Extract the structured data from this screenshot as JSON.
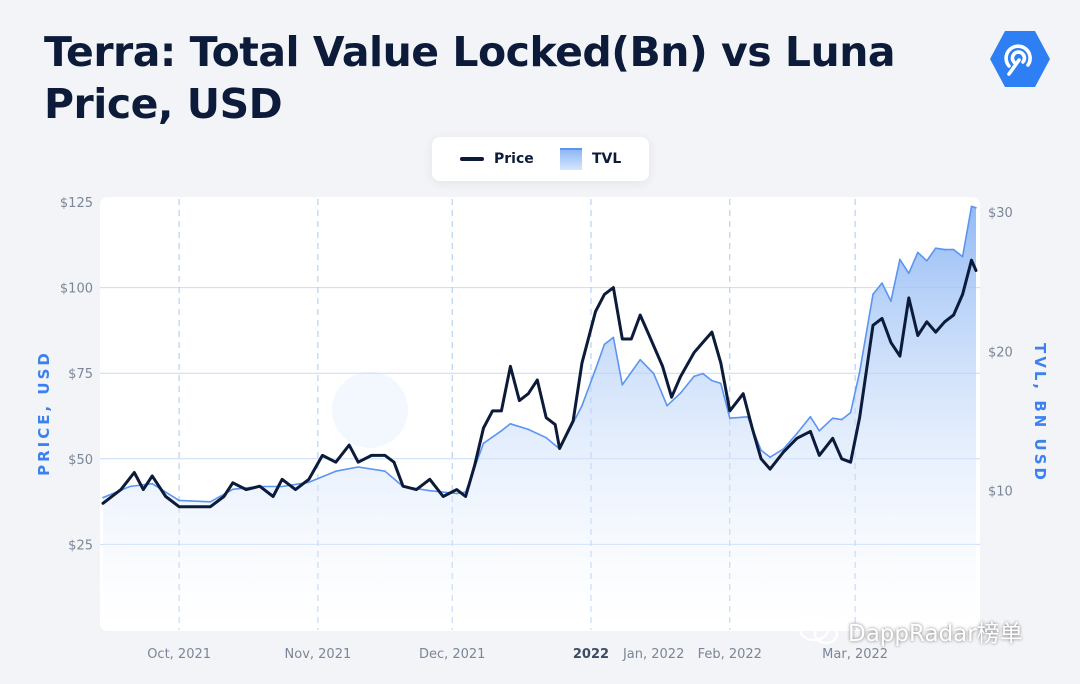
{
  "header": {
    "title": "Terra: Total Value Locked(Bn) vs Luna Price, USD"
  },
  "brand": {
    "logo_icon": "dappradar-logo-icon",
    "accent": "#3b82f0",
    "dark": "#0c1b3a"
  },
  "legend": {
    "items": [
      {
        "label": "Price",
        "color": "#0c1b3a",
        "kind": "line"
      },
      {
        "label": "TVL",
        "color": "#5b95ef",
        "kind": "area"
      }
    ]
  },
  "chart_data": {
    "type": "line",
    "title": "Terra: Total Value Locked(Bn) vs Luna Price, USD",
    "x_ticks": [
      "Oct, 2021",
      "Nov, 2021",
      "Dec, 2021",
      "2022",
      "Jan, 2022",
      "Feb, 2022",
      "Mar, 2022"
    ],
    "x_range": [
      "2021-09-14",
      "2022-03-28"
    ],
    "ylabel_left": "PRICE, USD",
    "ylabel_right": "TVL, BN USD",
    "y_left": {
      "ticks": [
        "$125",
        "$100",
        "$75",
        "$50",
        "$25"
      ],
      "values": [
        125,
        100,
        75,
        50,
        25
      ],
      "range": [
        0,
        125
      ]
    },
    "y_right": {
      "ticks": [
        "$30",
        "$20",
        "$10"
      ],
      "values": [
        30,
        20,
        10
      ],
      "range": [
        0,
        30
      ]
    },
    "grid": "horizontal solid, vertical dashed",
    "legend_position": "top-center",
    "series": [
      {
        "name": "Price",
        "axis": "left",
        "color": "#0c1b3a",
        "points": [
          [
            "2021-09-14",
            37
          ],
          [
            "2021-09-18",
            41
          ],
          [
            "2021-09-21",
            46
          ],
          [
            "2021-09-23",
            41
          ],
          [
            "2021-09-25",
            45
          ],
          [
            "2021-09-28",
            39
          ],
          [
            "2021-10-01",
            36
          ],
          [
            "2021-10-05",
            36
          ],
          [
            "2021-10-08",
            36
          ],
          [
            "2021-10-11",
            39
          ],
          [
            "2021-10-13",
            43
          ],
          [
            "2021-10-16",
            41
          ],
          [
            "2021-10-19",
            42
          ],
          [
            "2021-10-22",
            39
          ],
          [
            "2021-10-24",
            44
          ],
          [
            "2021-10-27",
            41
          ],
          [
            "2021-10-30",
            44
          ],
          [
            "2021-11-02",
            51
          ],
          [
            "2021-11-05",
            49
          ],
          [
            "2021-11-08",
            54
          ],
          [
            "2021-11-10",
            49
          ],
          [
            "2021-11-13",
            51
          ],
          [
            "2021-11-16",
            51
          ],
          [
            "2021-11-18",
            49
          ],
          [
            "2021-11-20",
            42
          ],
          [
            "2021-11-23",
            41
          ],
          [
            "2021-11-26",
            44
          ],
          [
            "2021-11-29",
            39
          ],
          [
            "2021-12-02",
            41
          ],
          [
            "2021-12-04",
            39
          ],
          [
            "2021-12-06",
            48
          ],
          [
            "2021-12-08",
            59
          ],
          [
            "2021-12-10",
            64
          ],
          [
            "2021-12-12",
            64
          ],
          [
            "2021-12-14",
            77
          ],
          [
            "2021-12-16",
            67
          ],
          [
            "2021-12-18",
            69
          ],
          [
            "2021-12-20",
            73
          ],
          [
            "2021-12-22",
            62
          ],
          [
            "2021-12-24",
            60
          ],
          [
            "2021-12-25",
            53
          ],
          [
            "2021-12-28",
            61
          ],
          [
            "2021-12-30",
            78
          ],
          [
            "2022-01-02",
            93
          ],
          [
            "2022-01-04",
            98
          ],
          [
            "2022-01-06",
            100
          ],
          [
            "2022-01-08",
            85
          ],
          [
            "2022-01-10",
            85
          ],
          [
            "2022-01-12",
            92
          ],
          [
            "2022-01-14",
            86
          ],
          [
            "2022-01-17",
            77
          ],
          [
            "2022-01-19",
            68
          ],
          [
            "2022-01-21",
            74
          ],
          [
            "2022-01-24",
            81
          ],
          [
            "2022-01-26",
            84
          ],
          [
            "2022-01-28",
            87
          ],
          [
            "2022-01-30",
            78
          ],
          [
            "2022-02-01",
            64
          ],
          [
            "2022-02-04",
            69
          ],
          [
            "2022-02-06",
            59
          ],
          [
            "2022-02-08",
            50
          ],
          [
            "2022-02-10",
            47
          ],
          [
            "2022-02-13",
            52
          ],
          [
            "2022-02-16",
            56
          ],
          [
            "2022-02-19",
            58
          ],
          [
            "2022-02-21",
            51
          ],
          [
            "2022-02-24",
            56
          ],
          [
            "2022-02-26",
            50
          ],
          [
            "2022-02-28",
            49
          ],
          [
            "2022-03-02",
            62
          ],
          [
            "2022-03-05",
            89
          ],
          [
            "2022-03-07",
            91
          ],
          [
            "2022-03-09",
            84
          ],
          [
            "2022-03-11",
            80
          ],
          [
            "2022-03-13",
            97
          ],
          [
            "2022-03-15",
            86
          ],
          [
            "2022-03-17",
            90
          ],
          [
            "2022-03-19",
            87
          ],
          [
            "2022-03-21",
            90
          ],
          [
            "2022-03-23",
            92
          ],
          [
            "2022-03-25",
            98
          ],
          [
            "2022-03-27",
            108
          ],
          [
            "2022-03-28",
            105
          ]
        ]
      },
      {
        "name": "TVL",
        "axis": "right",
        "color": "#5b95ef",
        "points": [
          [
            "2021-09-14",
            9.5
          ],
          [
            "2021-09-20",
            10.3
          ],
          [
            "2021-09-25",
            10.5
          ],
          [
            "2021-10-01",
            9.3
          ],
          [
            "2021-10-08",
            9.2
          ],
          [
            "2021-10-13",
            10.1
          ],
          [
            "2021-10-19",
            10.3
          ],
          [
            "2021-10-24",
            10.3
          ],
          [
            "2021-10-30",
            10.6
          ],
          [
            "2021-11-05",
            11.4
          ],
          [
            "2021-11-10",
            11.7
          ],
          [
            "2021-11-16",
            11.4
          ],
          [
            "2021-11-20",
            10.3
          ],
          [
            "2021-11-26",
            10.0
          ],
          [
            "2021-12-02",
            9.8
          ],
          [
            "2021-12-04",
            9.9
          ],
          [
            "2021-12-08",
            13.4
          ],
          [
            "2021-12-12",
            14.3
          ],
          [
            "2021-12-14",
            14.8
          ],
          [
            "2021-12-18",
            14.4
          ],
          [
            "2021-12-22",
            13.8
          ],
          [
            "2021-12-25",
            13.0
          ],
          [
            "2021-12-30",
            16.1
          ],
          [
            "2022-01-02",
            18.7
          ],
          [
            "2022-01-04",
            20.5
          ],
          [
            "2022-01-06",
            21.0
          ],
          [
            "2022-01-08",
            17.6
          ],
          [
            "2022-01-12",
            19.4
          ],
          [
            "2022-01-15",
            18.4
          ],
          [
            "2022-01-18",
            16.1
          ],
          [
            "2022-01-21",
            17.0
          ],
          [
            "2022-01-24",
            18.2
          ],
          [
            "2022-01-26",
            18.4
          ],
          [
            "2022-01-28",
            17.9
          ],
          [
            "2022-01-30",
            17.7
          ],
          [
            "2022-02-01",
            15.2
          ],
          [
            "2022-02-05",
            15.3
          ],
          [
            "2022-02-08",
            12.9
          ],
          [
            "2022-02-10",
            12.4
          ],
          [
            "2022-02-13",
            13.0
          ],
          [
            "2022-02-16",
            14.1
          ],
          [
            "2022-02-19",
            15.3
          ],
          [
            "2022-02-21",
            14.3
          ],
          [
            "2022-02-24",
            15.2
          ],
          [
            "2022-02-26",
            15.1
          ],
          [
            "2022-02-28",
            15.6
          ],
          [
            "2022-03-02",
            18.5
          ],
          [
            "2022-03-05",
            24.1
          ],
          [
            "2022-03-07",
            24.9
          ],
          [
            "2022-03-09",
            23.6
          ],
          [
            "2022-03-11",
            26.6
          ],
          [
            "2022-03-13",
            25.6
          ],
          [
            "2022-03-15",
            27.1
          ],
          [
            "2022-03-17",
            26.5
          ],
          [
            "2022-03-19",
            27.4
          ],
          [
            "2022-03-21",
            27.3
          ],
          [
            "2022-03-23",
            27.3
          ],
          [
            "2022-03-25",
            26.8
          ],
          [
            "2022-03-27",
            30.4
          ],
          [
            "2022-03-28",
            30.3
          ]
        ]
      }
    ]
  },
  "watermark": {
    "text": "DappRadar榜单",
    "icon": "wechat-icon"
  }
}
